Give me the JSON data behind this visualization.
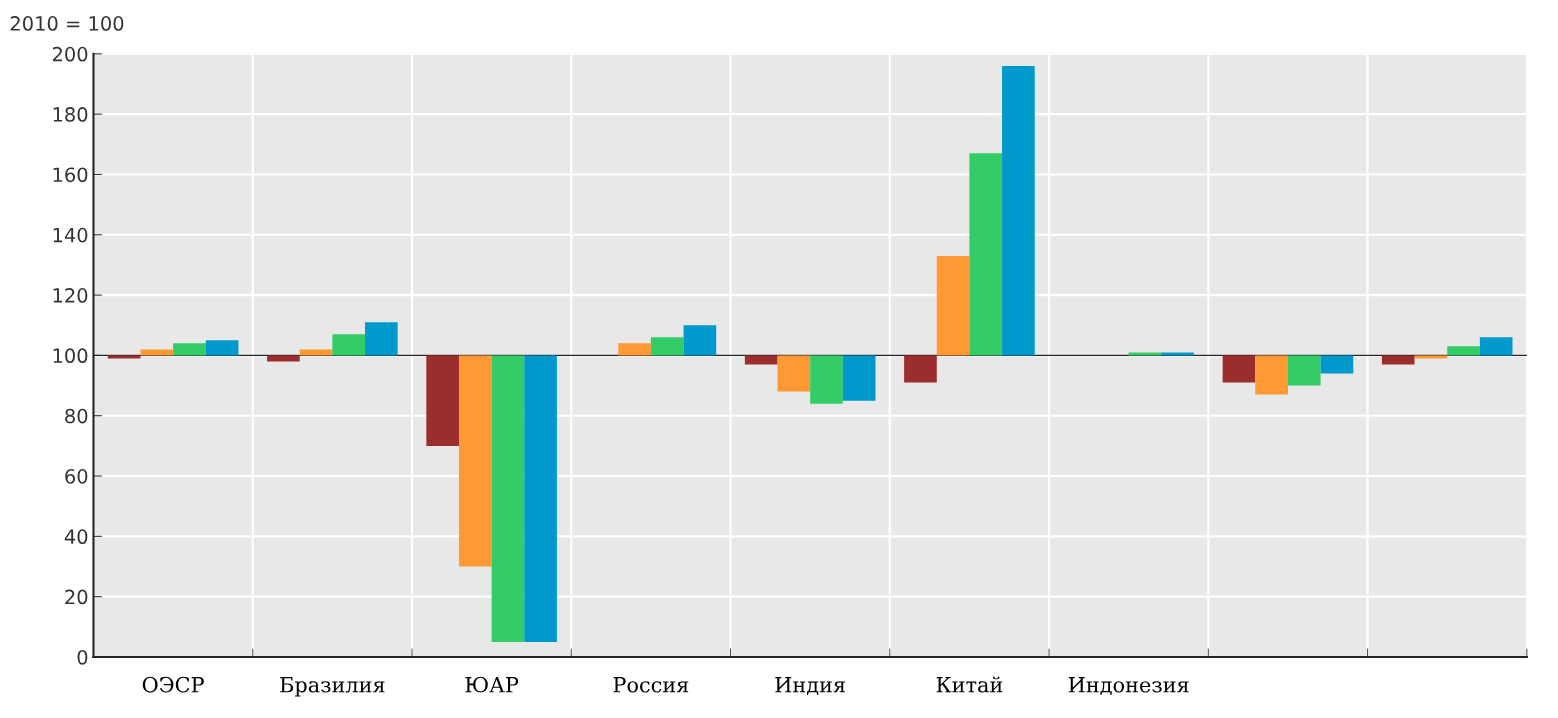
{
  "chart_data": {
    "type": "bar",
    "ylabel": "2010 = 100",
    "categories": [
      "ОЭСР",
      "Бразилия",
      "ЮАР",
      "Россия",
      "Индия",
      "Китай",
      "Индонезия",
      null,
      null
    ],
    "series": [
      {
        "color": "#9b2d2d",
        "base": [
          100,
          100,
          100,
          null,
          100,
          100,
          null,
          100,
          100
        ],
        "values": [
          -1,
          -2,
          -30,
          null,
          -3,
          -9,
          null,
          -9,
          -3
        ]
      },
      {
        "color": "#ff9933",
        "base": [
          100,
          100,
          100,
          100,
          100,
          100,
          null,
          100,
          100
        ],
        "values": [
          2,
          2,
          -70,
          4,
          -12,
          33,
          null,
          -13,
          -1
        ]
      },
      {
        "color": "#33cc66",
        "base": [
          100,
          100,
          100,
          100,
          100,
          100,
          100,
          100,
          100
        ],
        "values": [
          4,
          7,
          -95,
          6,
          -16,
          67,
          1,
          -10,
          3
        ]
      },
      {
        "color": "#0099cc",
        "base": [
          100,
          100,
          100,
          100,
          100,
          100,
          100,
          100,
          100
        ],
        "values": [
          5,
          11,
          -95,
          10,
          -15,
          96,
          1,
          -6,
          6
        ]
      }
    ],
    "ylim": [
      0,
      200
    ],
    "yticks": [
      0,
      20,
      40,
      60,
      80,
      100,
      120,
      140,
      160,
      180,
      200
    ],
    "ref_lines": [
      {
        "axis": "y",
        "value": 100,
        "color": "#222222"
      }
    ],
    "grid": true
  }
}
